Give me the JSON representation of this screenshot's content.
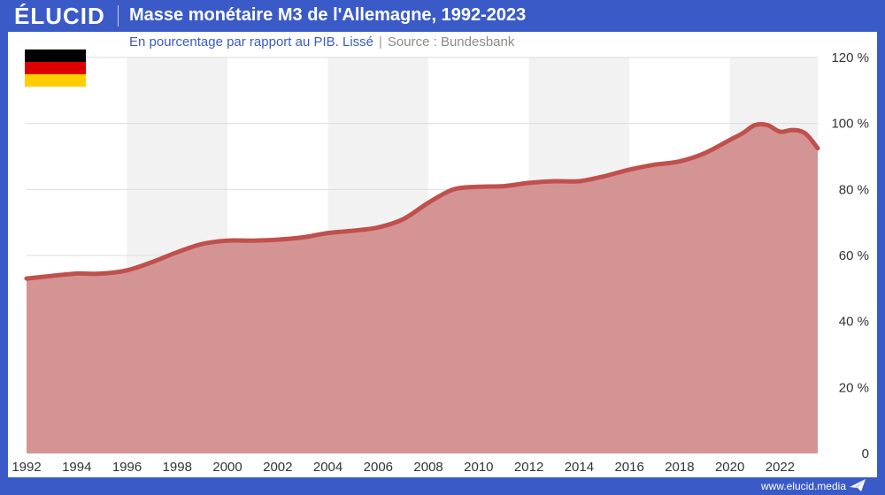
{
  "header": {
    "logo": "ÉLUCID",
    "title": "Masse monétaire M3 de l'Allemagne, 1992-2023"
  },
  "subtitle": {
    "main": "En pourcentage par rapport au PIB. Lissé",
    "separator": "|",
    "source": "Source : Bundesbank"
  },
  "flag": {
    "icon": "germany-flag-icon",
    "colors": [
      "#000000",
      "#dd0000",
      "#ffce00"
    ]
  },
  "footer": {
    "url": "www.elucid.media",
    "icon": "elucid-paper-plane-icon"
  },
  "colors": {
    "brand": "#3a5bc7",
    "line": "#c0504d",
    "area": "#d59494",
    "band": "#f2f2f2"
  },
  "chart_data": {
    "type": "area",
    "title": "Masse monétaire M3 de l'Allemagne, 1992-2023",
    "subtitle": "En pourcentage par rapport au PIB. Lissé",
    "xlabel": "",
    "ylabel": "",
    "xlim": [
      1992,
      2023.5
    ],
    "ylim": [
      0,
      120
    ],
    "grid": true,
    "y_axis_position": "right",
    "x_ticks": [
      1992,
      1994,
      1996,
      1998,
      2000,
      2002,
      2004,
      2006,
      2008,
      2010,
      2012,
      2014,
      2016,
      2018,
      2020,
      2022
    ],
    "y_ticks": [
      0,
      20,
      40,
      60,
      80,
      100,
      120
    ],
    "y_tick_labels": [
      "0",
      "20 %",
      "40 %",
      "60 %",
      "80 %",
      "100 %",
      "120 %"
    ],
    "series": [
      {
        "x": [
          1992,
          1993,
          1994,
          1995,
          1996,
          1997,
          1998,
          1999,
          2000,
          2001,
          2002,
          2003,
          2004,
          2005,
          2006,
          2007,
          2008,
          2009,
          2010,
          2011,
          2012,
          2013,
          2014,
          2015,
          2016,
          2017,
          2018,
          2019,
          2020,
          2020.5,
          2021,
          2021.5,
          2022,
          2022.5,
          2023,
          2023.5
        ],
        "y": [
          53,
          53.8,
          54.5,
          54.5,
          55.5,
          58,
          61,
          63.5,
          64.5,
          64.5,
          64.8,
          65.5,
          66.8,
          67.5,
          68.5,
          71,
          76,
          80,
          80.8,
          81,
          82,
          82.5,
          82.5,
          84,
          86,
          87.5,
          88.5,
          91,
          95,
          97,
          99.5,
          99.5,
          97.5,
          98,
          97,
          92.5
        ]
      }
    ]
  }
}
